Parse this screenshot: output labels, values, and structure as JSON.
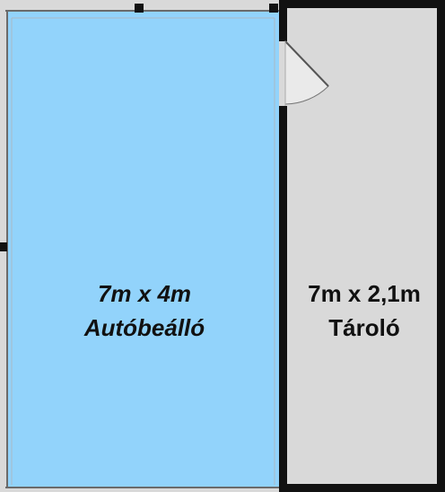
{
  "rooms": {
    "carport": {
      "dimensions": "7m x 4m",
      "name": "Autóbeálló",
      "fill": "#92d3fb"
    },
    "storage": {
      "dimensions": "7m x 2,1m",
      "name": "Tároló",
      "fill": "#d9d9d9"
    }
  },
  "colors": {
    "wall": "#111111",
    "door_leaf": "#ffffff"
  },
  "icons": {
    "door": "door-swing-icon",
    "marker": "wall-marker-icon"
  }
}
